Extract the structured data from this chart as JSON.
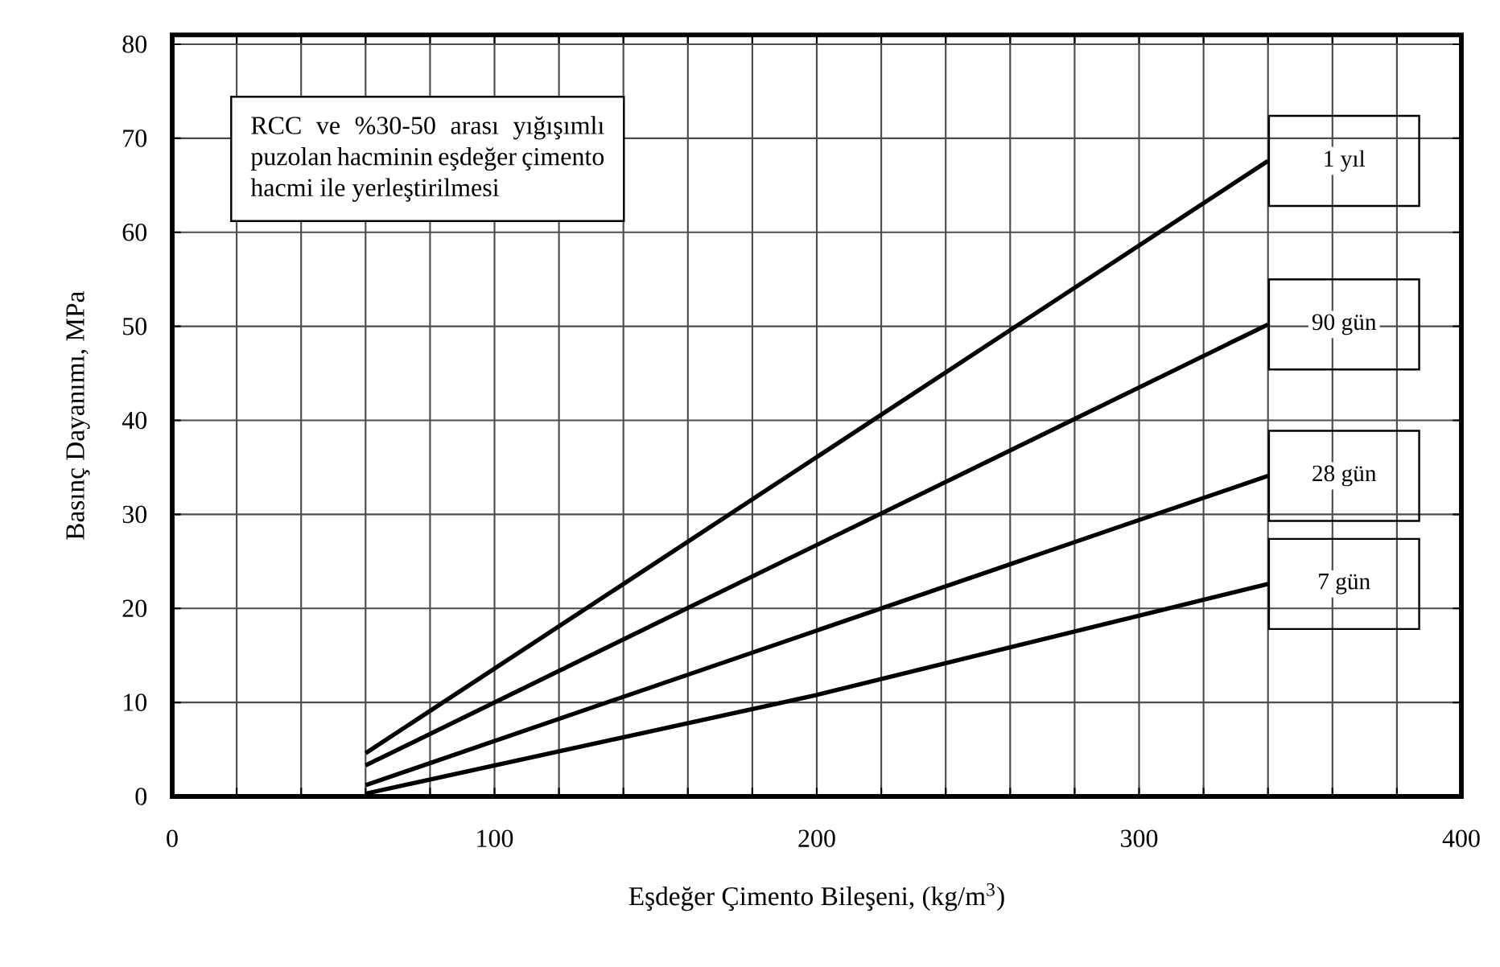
{
  "chart_data": {
    "type": "line",
    "xlabel": "Eşdeğer Çimento Bileşeni, (kg/m$^{3}$)",
    "ylabel": "Basınç Dayanımı, MPa",
    "annotations": [
      "RCC ve %30-50 arası yığışımlı puzolan hacminin eşdeğer çimento hacmi ile yerleştirilmesi"
    ],
    "series": [
      {
        "name": "1 yıl",
        "color": "#000000",
        "x": [
          60,
          340
        ],
        "values": [
          4.6,
          67.6
        ]
      },
      {
        "name": "90 gün",
        "color": "#000000",
        "x": [
          60,
          340
        ],
        "values": [
          3.3,
          50.2
        ]
      },
      {
        "name": "28 gün",
        "color": "#000000",
        "x": [
          60,
          340
        ],
        "values": [
          1.2,
          34.1
        ]
      },
      {
        "name": "7 gün",
        "color": "#000000",
        "x": [
          60,
          200,
          340
        ],
        "values": [
          0.3,
          10.8,
          22.6
        ]
      }
    ],
    "xlim": [
      0,
      400
    ],
    "xticks": [
      0,
      {
        "value": 20,
        "label": null
      },
      {
        "value": 40,
        "label": null
      },
      {
        "value": 60,
        "label": null
      },
      {
        "value": 80,
        "label": null
      },
      100,
      {
        "value": 120,
        "label": null
      },
      {
        "value": 140,
        "label": null
      },
      {
        "value": 160,
        "label": null
      },
      {
        "value": 180,
        "label": null
      },
      200,
      {
        "value": 220,
        "label": null
      },
      {
        "value": 240,
        "label": null
      },
      {
        "value": 260,
        "label": null
      },
      {
        "value": 280,
        "label": null
      },
      300,
      {
        "value": 320,
        "label": null
      },
      {
        "value": 340,
        "label": null
      },
      {
        "value": 360,
        "label": null
      },
      {
        "value": 380,
        "label": null
      },
      400
    ],
    "ylim": [
      0,
      81
    ],
    "yticks": [
      0,
      10,
      20,
      30,
      40,
      50,
      60,
      70,
      80
    ],
    "grid": true,
    "marker": "none",
    "line_style": "solid"
  }
}
